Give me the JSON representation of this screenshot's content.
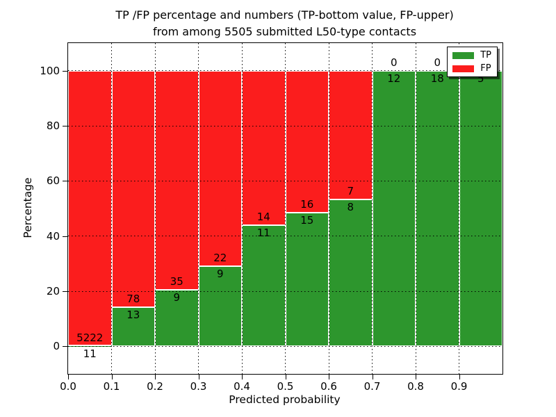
{
  "chart_data": {
    "type": "bar",
    "stacked": true,
    "title_line1": "TP /FP percentage and numbers (TP-bottom value, FP-upper)",
    "title_line2": "from among 5505 submitted L50-type contacts",
    "xlabel": "Predicted probability",
    "ylabel": "Percentage",
    "xlim": [
      0.0,
      1.0
    ],
    "ylim": [
      -10,
      110
    ],
    "grid": "dotted",
    "legend_position": "upper right",
    "x_ticks": [
      "0.0",
      "0.1",
      "0.2",
      "0.3",
      "0.4",
      "0.5",
      "0.6",
      "0.7",
      "0.8",
      "0.9"
    ],
    "y_ticks": [
      {
        "label": "0",
        "value": 0
      },
      {
        "label": "20",
        "value": 20
      },
      {
        "label": "40",
        "value": 40
      },
      {
        "label": "60",
        "value": 60
      },
      {
        "label": "80",
        "value": 80
      },
      {
        "label": "100",
        "value": 100
      }
    ],
    "colors": {
      "tp": "#2d962d",
      "fp": "#fb1d1d"
    },
    "legend": [
      {
        "label": "TP",
        "color_key": "tp"
      },
      {
        "label": "FP",
        "color_key": "fp"
      }
    ],
    "bins": [
      {
        "range": "0.0-0.1",
        "tp": 11,
        "fp": 5222,
        "tp_pct": 0.21
      },
      {
        "range": "0.1-0.2",
        "tp": 13,
        "fp": 78,
        "tp_pct": 14.29
      },
      {
        "range": "0.2-0.3",
        "tp": 9,
        "fp": 35,
        "tp_pct": 20.45
      },
      {
        "range": "0.3-0.4",
        "tp": 9,
        "fp": 22,
        "tp_pct": 29.03
      },
      {
        "range": "0.4-0.5",
        "tp": 11,
        "fp": 14,
        "tp_pct": 44.0
      },
      {
        "range": "0.5-0.6",
        "tp": 15,
        "fp": 16,
        "tp_pct": 48.39
      },
      {
        "range": "0.6-0.7",
        "tp": 8,
        "fp": 7,
        "tp_pct": 53.33
      },
      {
        "range": "0.7-0.8",
        "tp": 12,
        "fp": 0,
        "tp_pct": 100
      },
      {
        "range": "0.8-0.9",
        "tp": 18,
        "fp": 0,
        "tp_pct": 100
      },
      {
        "range": "0.9-1.0",
        "tp": 5,
        "fp": 0,
        "tp_pct": 100
      }
    ]
  }
}
